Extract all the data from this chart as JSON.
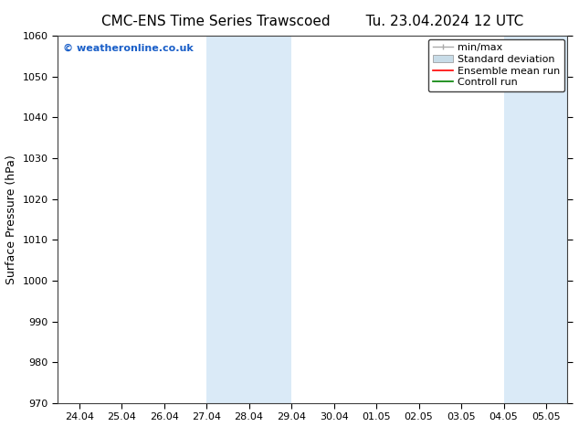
{
  "title_left": "CMC-ENS Time Series Trawscoed",
  "title_right": "Tu. 23.04.2024 12 UTC",
  "ylabel": "Surface Pressure (hPa)",
  "ylim": [
    970,
    1060
  ],
  "yticks": [
    970,
    980,
    990,
    1000,
    1010,
    1020,
    1030,
    1040,
    1050,
    1060
  ],
  "xtick_labels": [
    "24.04",
    "25.04",
    "26.04",
    "27.04",
    "28.04",
    "29.04",
    "30.04",
    "01.05",
    "02.05",
    "03.05",
    "04.05",
    "05.05"
  ],
  "shaded_regions": [
    {
      "xstart": 3,
      "xend": 5,
      "color": "#daeaf7"
    },
    {
      "xstart": 10,
      "xend": 11.5,
      "color": "#daeaf7"
    }
  ],
  "watermark": "© weatheronline.co.uk",
  "watermark_color": "#1a5fc8",
  "legend_entries": [
    {
      "label": "min/max",
      "color": "#aaaaaa",
      "lw": 1.0,
      "ls": "-",
      "type": "line_caps"
    },
    {
      "label": "Standard deviation",
      "color": "#c8dce8",
      "lw": 6,
      "ls": "-",
      "type": "patch"
    },
    {
      "label": "Ensemble mean run",
      "color": "#ff0000",
      "lw": 1.2,
      "ls": "-",
      "type": "line"
    },
    {
      "label": "Controll run",
      "color": "#008000",
      "lw": 1.2,
      "ls": "-",
      "type": "line"
    }
  ],
  "bg_color": "#ffffff",
  "spine_color": "#404040",
  "title_fontsize": 11,
  "tick_fontsize": 8,
  "ylabel_fontsize": 9,
  "watermark_fontsize": 8,
  "legend_fontsize": 8
}
